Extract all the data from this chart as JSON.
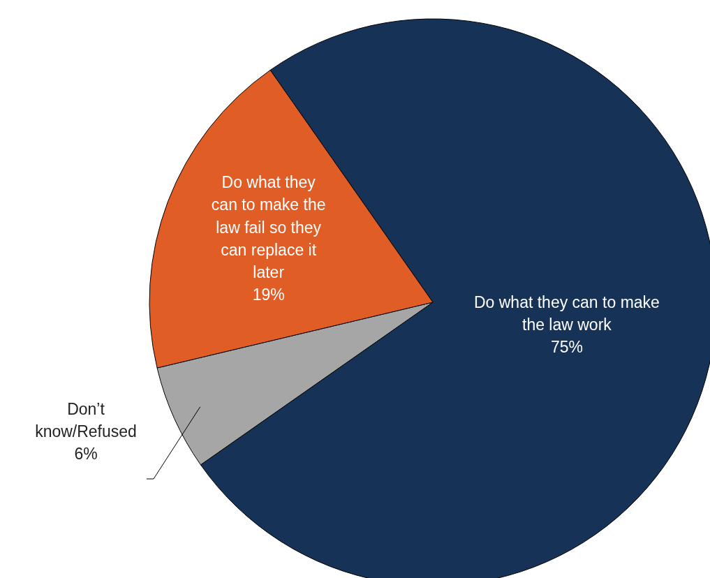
{
  "chart_data": {
    "type": "pie",
    "categories": [
      "Do what they can to make the law work",
      "Don’t know/Refused",
      "Do what they can to make the law fail so they can replace it later"
    ],
    "values": [
      75,
      6,
      19
    ],
    "colors": [
      "#163257",
      "#a6a6a6",
      "#e05d26"
    ],
    "value_labels": [
      "75%",
      "6%",
      "19%"
    ]
  }
}
